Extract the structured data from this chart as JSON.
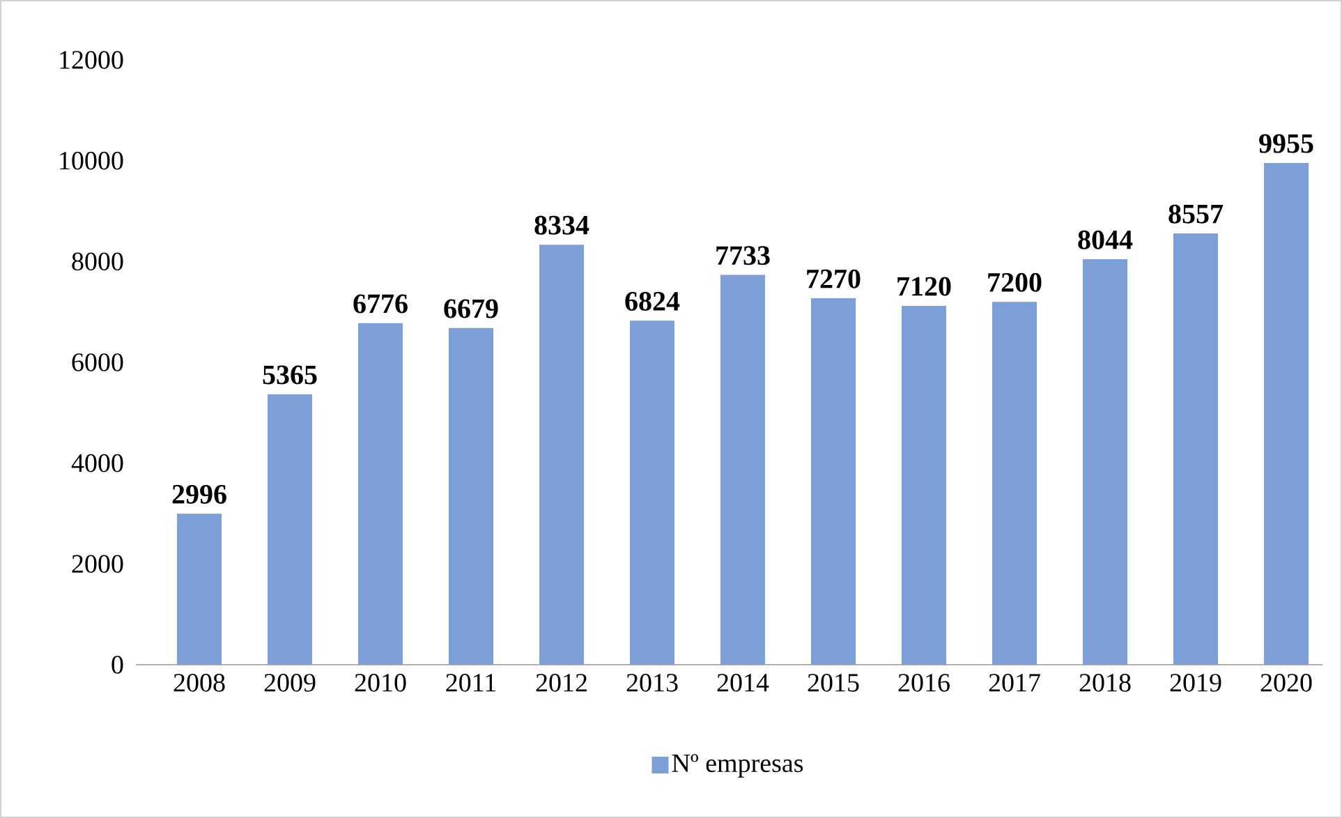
{
  "chart_data": {
    "type": "bar",
    "categories": [
      "2008",
      "2009",
      "2010",
      "2011",
      "2012",
      "2013",
      "2014",
      "2015",
      "2016",
      "2017",
      "2018",
      "2019",
      "2020"
    ],
    "series": [
      {
        "name": "Nº empresas",
        "color": "#7b9fd6",
        "values": [
          2996,
          5365,
          6776,
          6679,
          8334,
          6824,
          7733,
          7270,
          7120,
          7200,
          8044,
          8557,
          9955
        ]
      }
    ],
    "ylim": [
      0,
      12000
    ],
    "yticks": [
      0,
      2000,
      4000,
      6000,
      8000,
      10000,
      12000
    ],
    "data_labels": true,
    "legend": "bottom"
  }
}
